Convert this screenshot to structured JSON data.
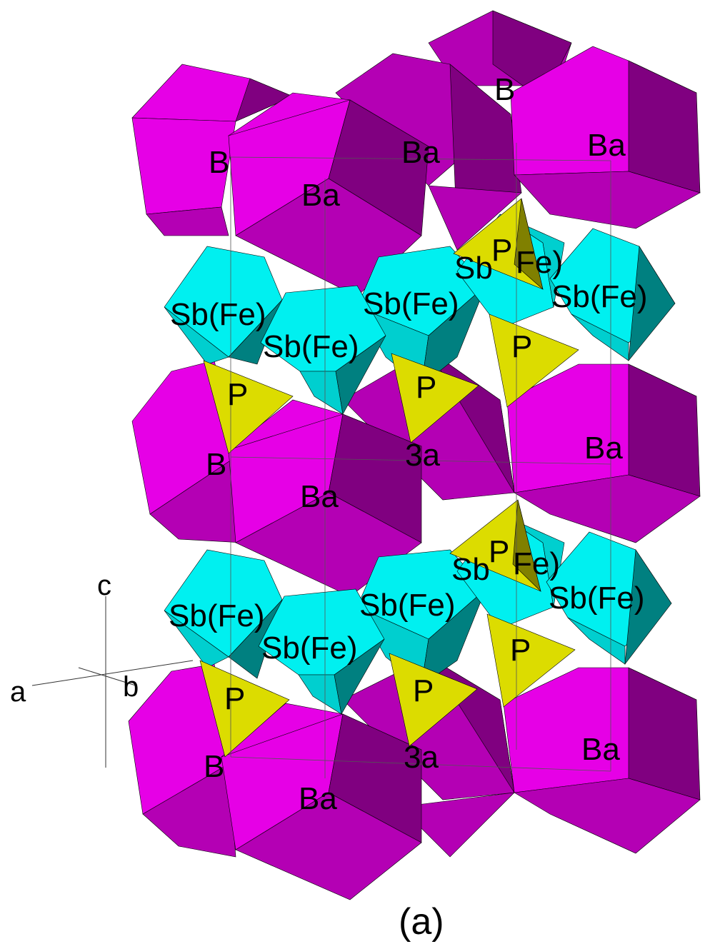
{
  "figure": {
    "caption": "(a)",
    "colors": {
      "ba_light": "#e600e6",
      "ba_mid": "#b400b4",
      "ba_dark": "#800080",
      "sb_light": "#00f0f0",
      "sb_mid": "#00cfcf",
      "sb_dark": "#008080",
      "p_light": "#dcdc00",
      "p_dark": "#808000",
      "edge": "#000000"
    }
  },
  "labels": {
    "ba": "Ba",
    "sbfe": "Sb(Fe)",
    "p": "P",
    "ba_partial": "B",
    "sb_partial": "Sb",
    "fe_partial": "Fe)",
    "ba_tail": "3a"
  },
  "axes": {
    "a": "a",
    "b": "b",
    "c": "c"
  }
}
